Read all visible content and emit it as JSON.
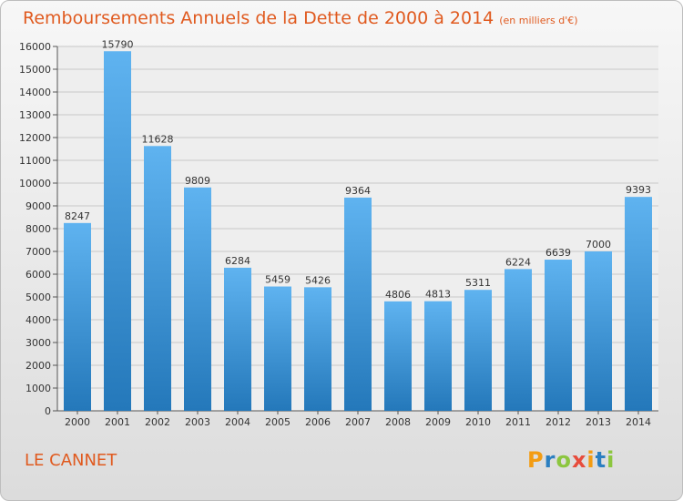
{
  "header": {
    "title": "Remboursements Annuels de la Dette de 2000 à 2014",
    "unit": "(en milliers d'€)"
  },
  "footer": {
    "commune": "LE CANNET",
    "logo": "Proxiti"
  },
  "colors": {
    "title": "#e05a1f",
    "bar_top": "#5fb3f0",
    "bar_bottom": "#2478ba",
    "grid": "#c8c8c8"
  },
  "chart_data": {
    "type": "bar",
    "title": "Remboursements Annuels de la Dette de 2000 à 2014",
    "subtitle": "(en milliers d'€)",
    "xlabel": "",
    "ylabel": "",
    "ylim": [
      0,
      16000
    ],
    "ytick_step": 1000,
    "grid": true,
    "categories": [
      "2000",
      "2001",
      "2002",
      "2003",
      "2004",
      "2005",
      "2006",
      "2007",
      "2008",
      "2009",
      "2010",
      "2011",
      "2012",
      "2013",
      "2014"
    ],
    "values": [
      8247,
      15790,
      11628,
      9809,
      6284,
      5459,
      5426,
      9364,
      4806,
      4813,
      5311,
      6224,
      6639,
      7000,
      9393
    ]
  }
}
